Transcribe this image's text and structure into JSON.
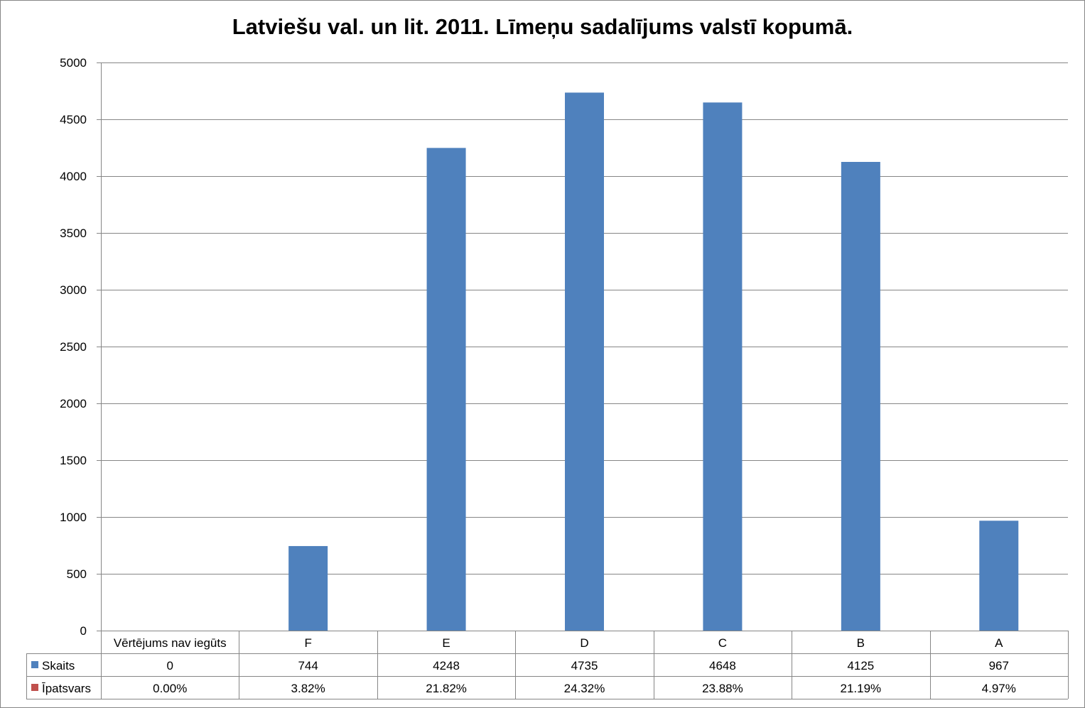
{
  "chart_data": {
    "type": "bar",
    "title": "Latviešu val. un lit. 2011. Līmeņu sadalījums valstī kopumā.",
    "categories": [
      "Vērtējums nav iegūts",
      "F",
      "E",
      "D",
      "C",
      "B",
      "A"
    ],
    "ylim": [
      0,
      5000
    ],
    "yticks": [
      0,
      500,
      1000,
      1500,
      2000,
      2500,
      3000,
      3500,
      4000,
      4500,
      5000
    ],
    "grid": true,
    "legend_position": "data-table",
    "series": [
      {
        "name": "Skaits",
        "color": "#4f81bd",
        "values": [
          0,
          744,
          4248,
          4735,
          4648,
          4125,
          967
        ],
        "table_labels": [
          "0",
          "744",
          "4248",
          "4735",
          "4648",
          "4125",
          "967"
        ]
      },
      {
        "name": "Īpatsvars",
        "color": "#c0504d",
        "values": [
          0.0,
          3.82,
          21.82,
          24.32,
          23.88,
          21.19,
          4.97
        ],
        "table_labels": [
          "0.00%",
          "3.82%",
          "21.82%",
          "24.32%",
          "23.88%",
          "21.19%",
          "4.97%"
        ]
      }
    ]
  }
}
